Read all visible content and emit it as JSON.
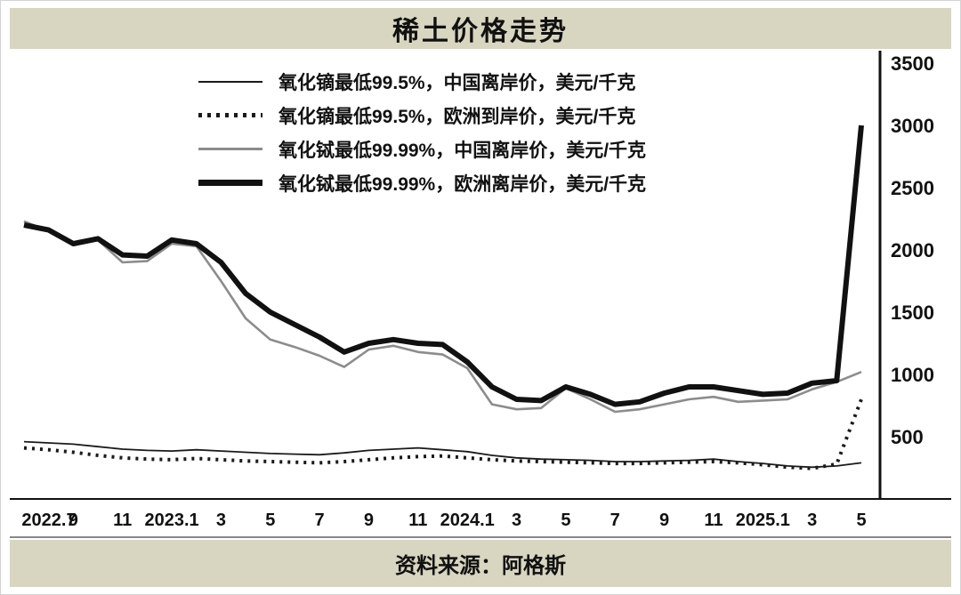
{
  "page": {
    "title": "稀土价格走势",
    "source": "资料来源：阿格斯"
  },
  "colors": {
    "band": "#d8d5c1",
    "background": "#ffffff",
    "axis": "#111111",
    "series_black": "#1a1a1a",
    "series_gray": "#8c8c8c"
  },
  "chart_data": {
    "type": "line",
    "title": "稀土价格走势",
    "ylabel": "美元/千克",
    "ylim": [
      0,
      3500
    ],
    "y_ticks": [
      500,
      1000,
      1500,
      2000,
      2500,
      3000,
      3500
    ],
    "grid": false,
    "legend_position": "top-left-inside",
    "x_unit": "month",
    "x_range": [
      "2022.7",
      "2025.5"
    ],
    "x_ticks": [
      {
        "index": 0,
        "label": "2022.7"
      },
      {
        "index": 2,
        "label": "9"
      },
      {
        "index": 4,
        "label": "11"
      },
      {
        "index": 6,
        "label": "2023.1"
      },
      {
        "index": 8,
        "label": "3"
      },
      {
        "index": 10,
        "label": "5"
      },
      {
        "index": 12,
        "label": "7"
      },
      {
        "index": 14,
        "label": "9"
      },
      {
        "index": 16,
        "label": "11"
      },
      {
        "index": 18,
        "label": "2024.1"
      },
      {
        "index": 20,
        "label": "3"
      },
      {
        "index": 22,
        "label": "5"
      },
      {
        "index": 24,
        "label": "7"
      },
      {
        "index": 26,
        "label": "9"
      },
      {
        "index": 28,
        "label": "11"
      },
      {
        "index": 30,
        "label": "2025.1"
      },
      {
        "index": 32,
        "label": "3"
      },
      {
        "index": 34,
        "label": "5"
      }
    ],
    "series": [
      {
        "name": "dysprosium-oxide-china-fob",
        "label": "氧化镝最低99.5%，中国离岸价，美元/千克",
        "style": "thin-solid",
        "color": "#1a1a1a",
        "values": [
          460,
          450,
          440,
          420,
          400,
          390,
          385,
          395,
          385,
          375,
          365,
          360,
          355,
          370,
          390,
          400,
          410,
          395,
          380,
          350,
          330,
          320,
          315,
          310,
          300,
          300,
          305,
          310,
          320,
          300,
          285,
          265,
          255,
          265,
          290
        ]
      },
      {
        "name": "dysprosium-oxide-europe-cif",
        "label": "氧化镝最低99.5%，欧洲到岸价，美元/千克",
        "style": "dotted",
        "color": "#1a1a1a",
        "values": [
          410,
          395,
          375,
          350,
          330,
          320,
          315,
          325,
          315,
          305,
          300,
          295,
          290,
          300,
          315,
          330,
          340,
          345,
          330,
          315,
          305,
          300,
          295,
          290,
          285,
          285,
          290,
          295,
          300,
          290,
          275,
          255,
          245,
          280,
          800
        ]
      },
      {
        "name": "terbium-oxide-china-fob",
        "label": "氧化铽最低99.99%，中国离岸价，美元/千克",
        "style": "solid",
        "color": "#8c8c8c",
        "values": [
          2230,
          2150,
          2060,
          2080,
          1900,
          1910,
          2050,
          2030,
          1750,
          1450,
          1280,
          1220,
          1150,
          1060,
          1200,
          1230,
          1180,
          1160,
          1050,
          760,
          720,
          730,
          890,
          800,
          700,
          720,
          760,
          800,
          820,
          780,
          790,
          800,
          880,
          940,
          1020
        ]
      },
      {
        "name": "terbium-oxide-europe-fob",
        "label": "氧化铽最低99.99%，欧洲离岸价，美元/千克",
        "style": "thick-solid",
        "color": "#111111",
        "values": [
          2200,
          2160,
          2050,
          2090,
          1960,
          1950,
          2080,
          2050,
          1900,
          1650,
          1500,
          1400,
          1300,
          1180,
          1250,
          1280,
          1250,
          1240,
          1100,
          900,
          800,
          790,
          900,
          840,
          760,
          780,
          850,
          900,
          900,
          870,
          840,
          850,
          930,
          950,
          3000
        ]
      }
    ]
  }
}
